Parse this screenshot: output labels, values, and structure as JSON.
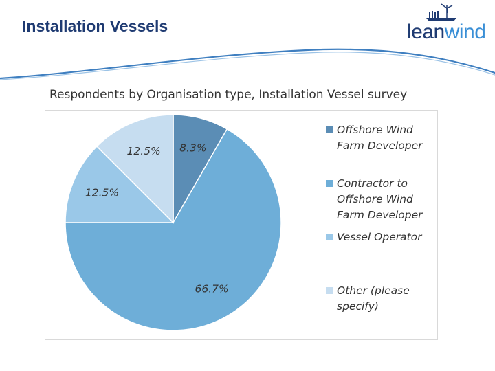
{
  "slide": {
    "title": "Installation Vessels"
  },
  "logo": {
    "part1": "lean",
    "part2": "wind"
  },
  "colors": {
    "title": "#1f3b72",
    "logo_dark": "#1f3b72",
    "logo_light": "#3a8fd6",
    "swoosh": "#3f7fc0"
  },
  "chart_data": {
    "type": "pie",
    "title": "Respondents by Organisation type, Installation Vessel survey",
    "legend_position": "right",
    "slices": [
      {
        "label": "Offshore Wind Farm Developer",
        "value": 8.3,
        "display": "8.3%",
        "color": "#5b8db5"
      },
      {
        "label": "Contractor to Offshore Wind Farm Developer",
        "value": 66.7,
        "display": "66.7%",
        "color": "#6eaed8"
      },
      {
        "label": "Vessel Operator",
        "value": 12.5,
        "display": "12.5%",
        "color": "#9ac8e8"
      },
      {
        "label": "Other (please specify)",
        "value": 12.5,
        "display": "12.5%",
        "color": "#c6ddf0"
      }
    ]
  }
}
